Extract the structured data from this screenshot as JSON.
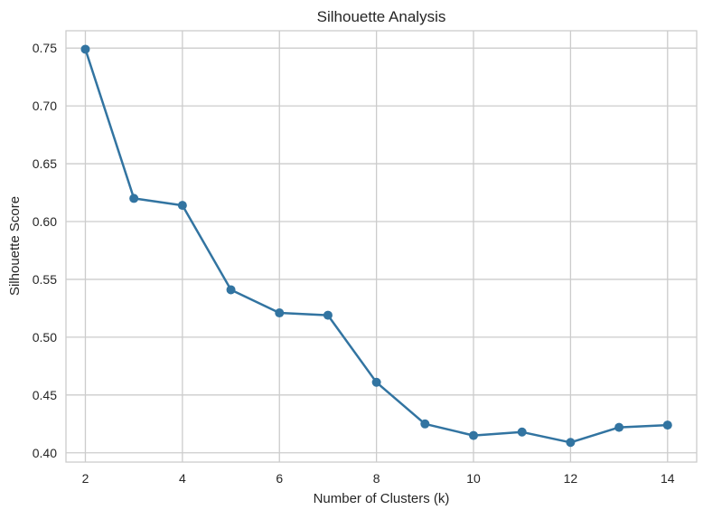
{
  "chart_data": {
    "type": "line",
    "title": "Silhouette Analysis",
    "xlabel": "Number of Clusters (k)",
    "ylabel": "Silhouette Score",
    "xlim": [
      1.6,
      14.6
    ],
    "ylim": [
      0.392,
      0.765
    ],
    "xticks": [
      2,
      4,
      6,
      8,
      10,
      12,
      14
    ],
    "yticks": [
      0.4,
      0.45,
      0.5,
      0.55,
      0.6,
      0.65,
      0.7,
      0.75
    ],
    "ytick_labels": [
      "0.40",
      "0.45",
      "0.50",
      "0.55",
      "0.60",
      "0.65",
      "0.70",
      "0.75"
    ],
    "grid": true,
    "markers": true,
    "series": [
      {
        "color": "#3274a1",
        "x": [
          2,
          3,
          4,
          5,
          6,
          7,
          8,
          9,
          10,
          11,
          12,
          13,
          14
        ],
        "y": [
          0.749,
          0.62,
          0.614,
          0.541,
          0.521,
          0.519,
          0.461,
          0.425,
          0.415,
          0.418,
          0.409,
          0.422,
          0.424
        ]
      }
    ]
  },
  "colors": {
    "series": "#3274a1",
    "grid": "#cccccc",
    "text": "#262626",
    "background": "#ffffff"
  }
}
